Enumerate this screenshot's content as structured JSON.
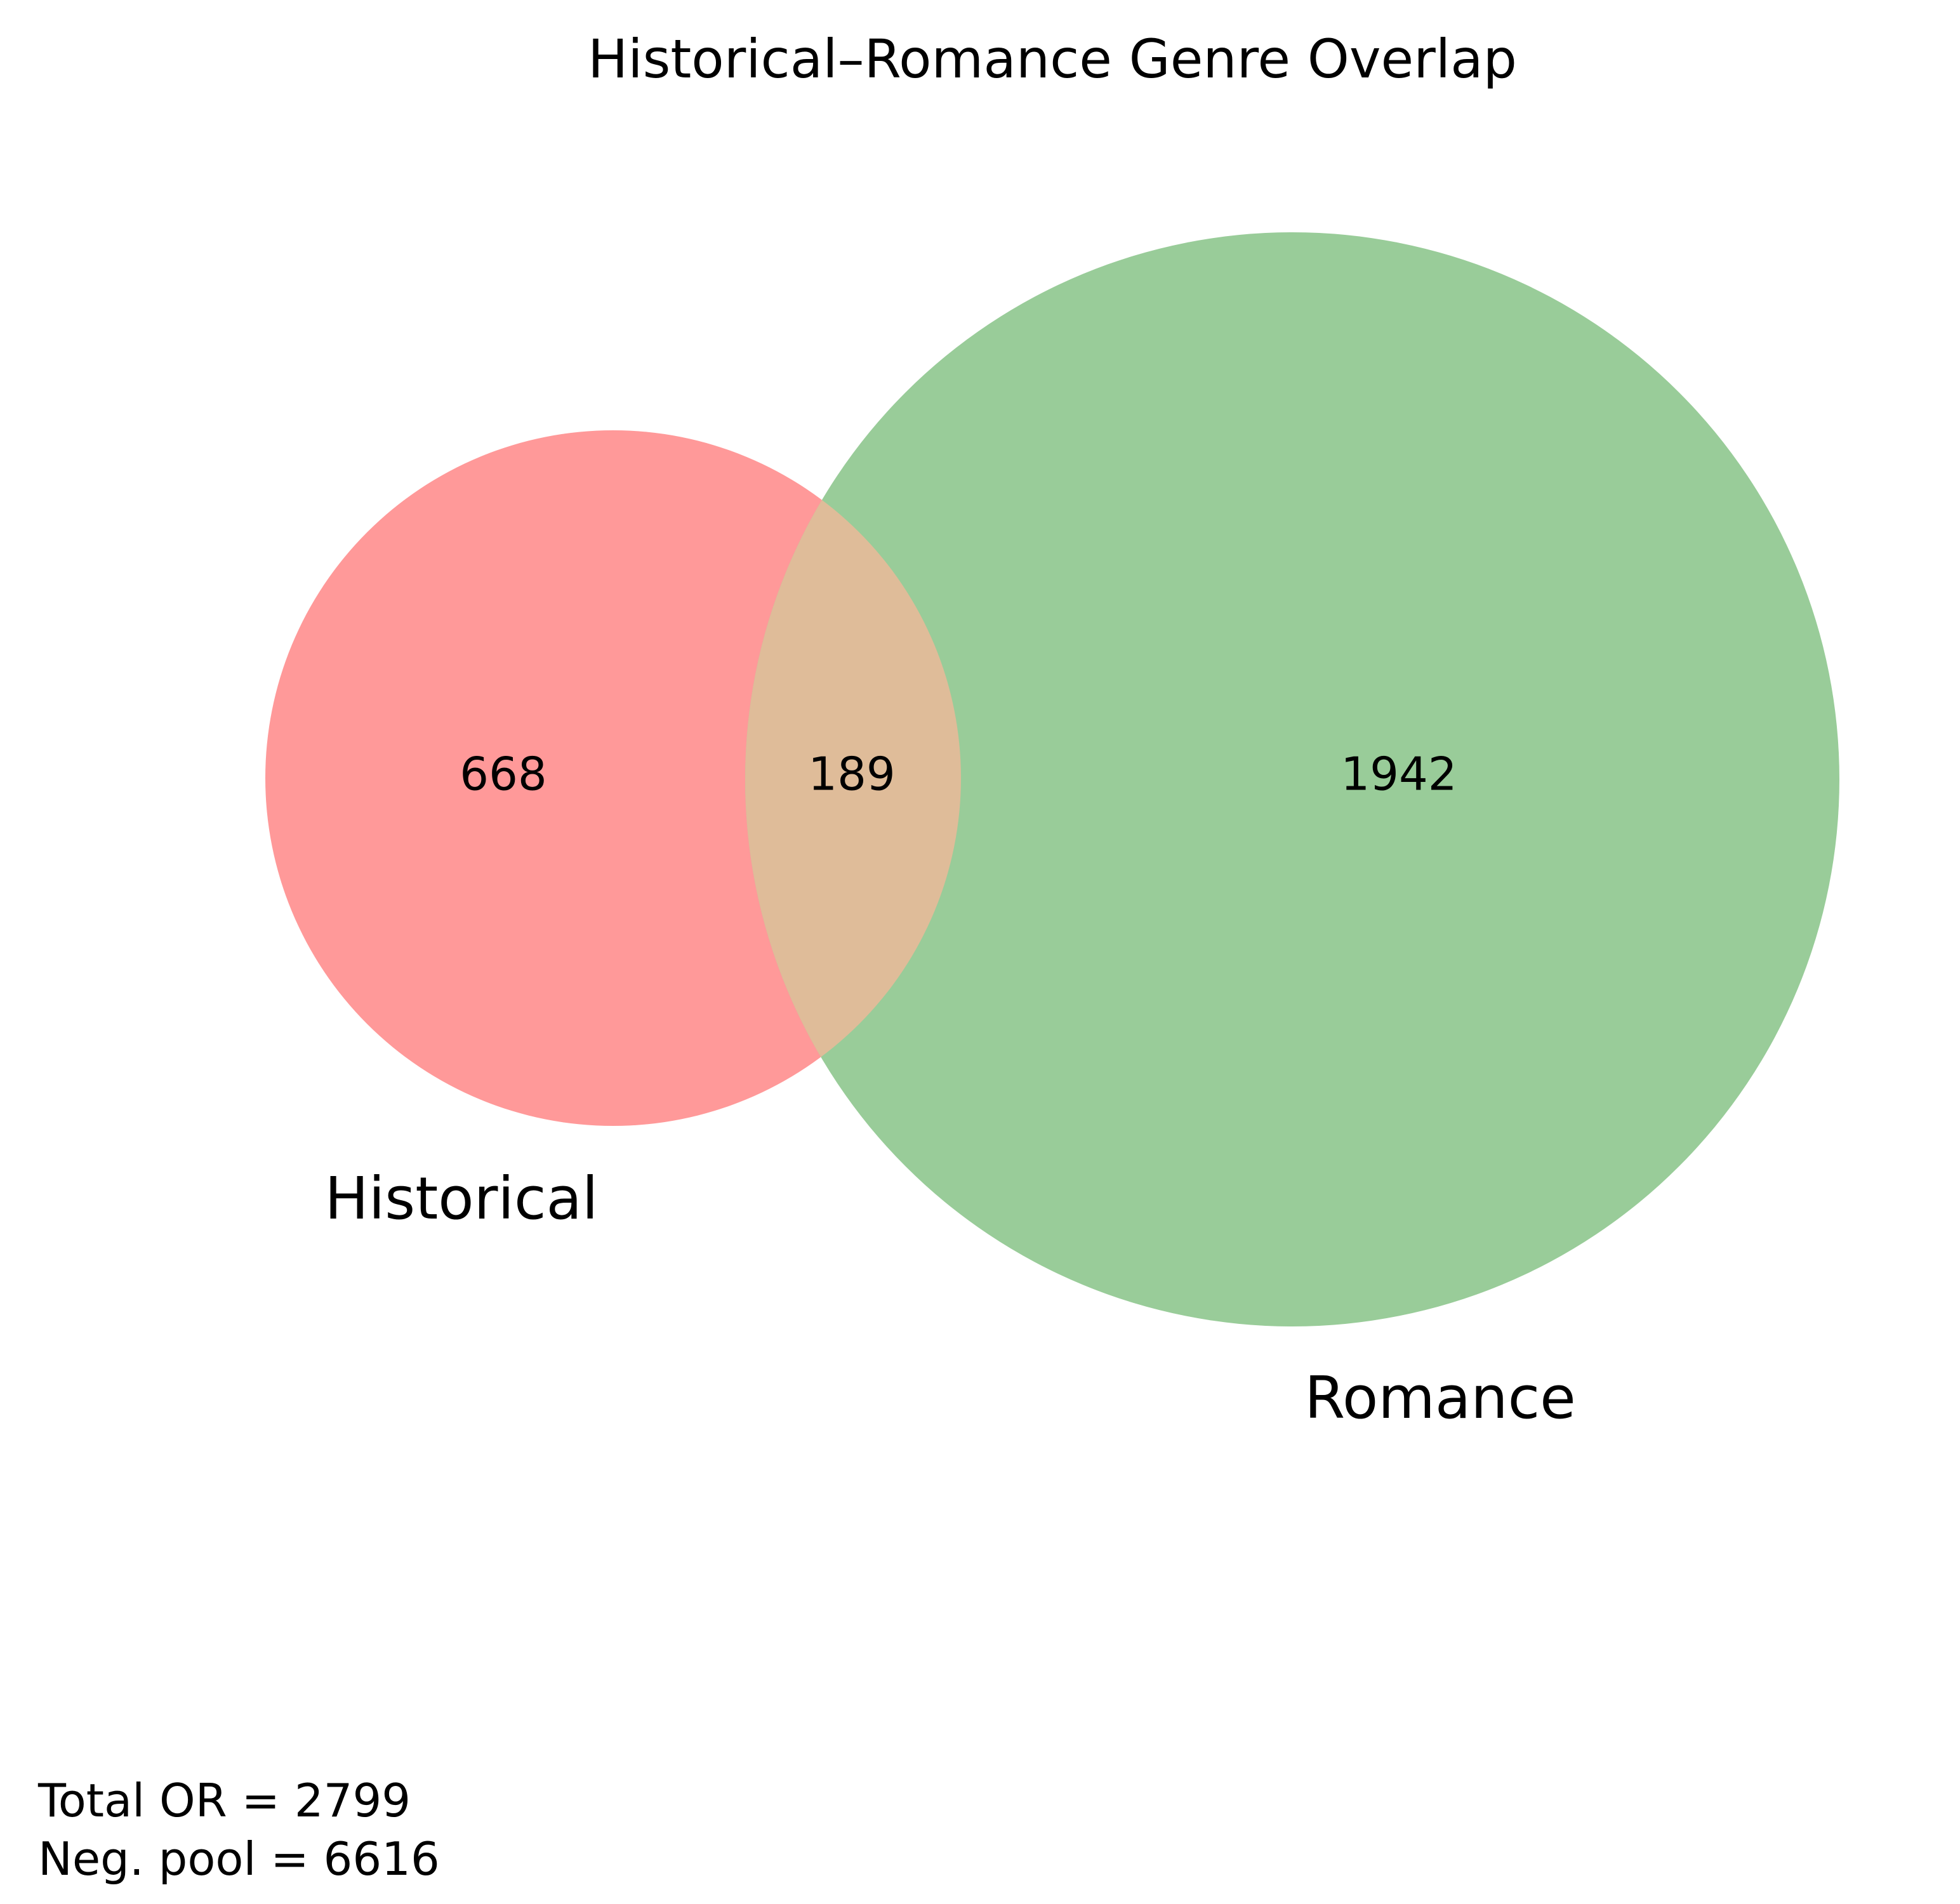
{
  "title": "Historical–Romance Genre Overlap",
  "sets": [
    {
      "name": "Historical",
      "color": "#ff9999"
    },
    {
      "name": "Romance",
      "color": "#99cc99"
    }
  ],
  "intersection_color": "#dfbc99",
  "regions": {
    "historical_only": "668",
    "intersection": "189",
    "romance_only": "1942"
  },
  "footer": {
    "line1": "Total OR = 2799",
    "line2": "Neg. pool = 6616"
  }
}
